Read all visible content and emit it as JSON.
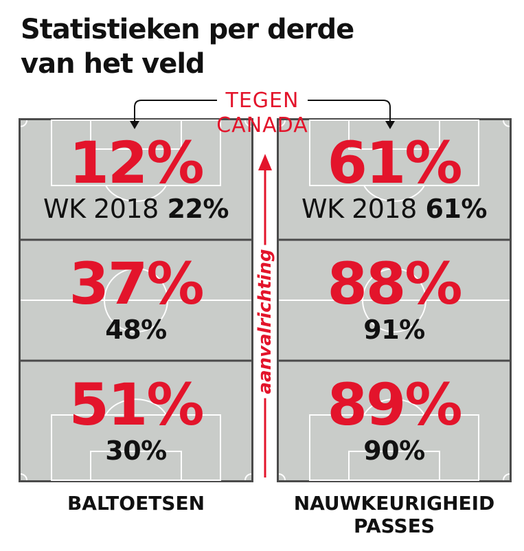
{
  "title": "Statistieken per derde van het veld",
  "header_label": {
    "line1": "TEGEN",
    "line2": "CANADA"
  },
  "direction_label": "aanvalrichting",
  "colors": {
    "accent": "#e3142b",
    "pitch": "#c9ccc9",
    "lines": "#ffffff",
    "text": "#111111"
  },
  "panels": [
    {
      "label": "BALTOETSEN",
      "thirds": [
        {
          "value": "12%",
          "prefix": "WK 2018",
          "compare": "22%"
        },
        {
          "value": "37%",
          "prefix": "",
          "compare": "48%"
        },
        {
          "value": "51%",
          "prefix": "",
          "compare": "30%"
        }
      ]
    },
    {
      "label_line1": "NAUWKEURIGHEID",
      "label_line2": "PASSES",
      "thirds": [
        {
          "value": "61%",
          "prefix": "WK 2018",
          "compare": "61%"
        },
        {
          "value": "88%",
          "prefix": "",
          "compare": "91%"
        },
        {
          "value": "89%",
          "prefix": "",
          "compare": "90%"
        }
      ]
    }
  ]
}
